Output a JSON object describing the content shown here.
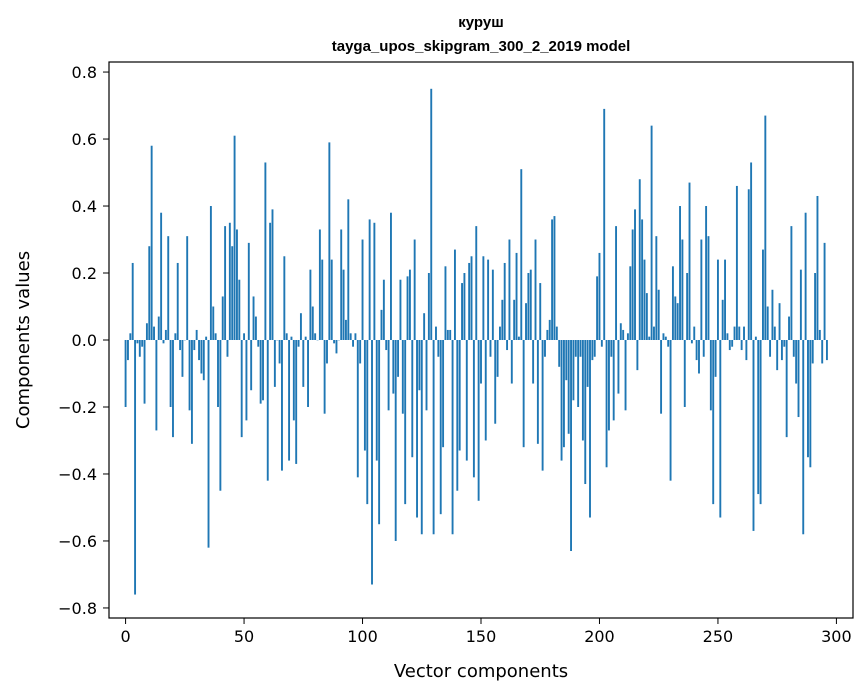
{
  "chart_data": {
    "type": "bar",
    "title": "куруш",
    "subtitle": "tayga_upos_skipgram_300_2_2019 model",
    "xlabel": "Vector components",
    "ylabel": "Components values",
    "xlim": [
      -7,
      307
    ],
    "ylim": [
      -0.83,
      0.83
    ],
    "xticks": [
      0,
      50,
      100,
      150,
      200,
      250,
      300
    ],
    "yticks": [
      -0.8,
      -0.6,
      -0.4,
      -0.2,
      0.0,
      0.2,
      0.4,
      0.6,
      0.8
    ],
    "ytick_labels": [
      "−0.8",
      "−0.6",
      "−0.4",
      "−0.2",
      "0.0",
      "0.2",
      "0.4",
      "0.6",
      "0.8"
    ],
    "color": "#1f77b4",
    "values": [
      -0.2,
      -0.06,
      0.02,
      0.23,
      -0.76,
      -0.01,
      -0.05,
      -0.02,
      -0.19,
      0.05,
      0.28,
      0.58,
      0.04,
      -0.27,
      0.07,
      0.38,
      -0.01,
      0.03,
      0.31,
      -0.2,
      -0.29,
      0.02,
      0.23,
      -0.03,
      -0.11,
      0.0,
      0.31,
      -0.21,
      -0.31,
      -0.03,
      0.03,
      -0.06,
      -0.1,
      -0.12,
      0.01,
      -0.62,
      0.4,
      0.1,
      0.02,
      -0.2,
      -0.45,
      0.13,
      0.34,
      -0.05,
      0.35,
      0.28,
      0.61,
      0.33,
      0.18,
      -0.29,
      0.02,
      -0.24,
      0.29,
      -0.15,
      0.13,
      0.07,
      -0.02,
      -0.19,
      -0.18,
      0.53,
      -0.42,
      0.35,
      0.39,
      -0.14,
      0.0,
      -0.07,
      -0.39,
      0.25,
      0.02,
      -0.36,
      0.01,
      -0.24,
      -0.37,
      -0.02,
      0.08,
      -0.14,
      0.01,
      -0.2,
      0.21,
      0.1,
      0.02,
      0.0,
      0.33,
      0.24,
      -0.22,
      -0.07,
      0.59,
      0.24,
      -0.01,
      -0.04,
      0.0,
      0.33,
      0.21,
      0.06,
      0.42,
      0.02,
      -0.02,
      0.02,
      -0.41,
      -0.07,
      0.3,
      -0.33,
      -0.49,
      0.36,
      -0.73,
      0.35,
      -0.36,
      -0.55,
      0.09,
      0.18,
      -0.03,
      -0.21,
      0.38,
      -0.16,
      -0.6,
      -0.11,
      0.18,
      -0.22,
      -0.49,
      0.19,
      0.21,
      -0.35,
      0.3,
      -0.53,
      -0.15,
      -0.58,
      0.08,
      -0.21,
      0.2,
      0.75,
      -0.58,
      0.04,
      -0.05,
      -0.52,
      -0.32,
      0.22,
      0.03,
      0.03,
      -0.58,
      0.27,
      -0.45,
      -0.33,
      0.17,
      0.2,
      -0.36,
      0.23,
      0.25,
      -0.41,
      0.34,
      -0.48,
      -0.13,
      0.25,
      -0.3,
      0.24,
      -0.05,
      0.21,
      -0.25,
      -0.11,
      0.04,
      0.12,
      0.23,
      -0.03,
      0.3,
      -0.13,
      0.12,
      0.26,
      0.01,
      0.51,
      -0.32,
      0.11,
      0.2,
      0.21,
      -0.13,
      0.3,
      -0.31,
      0.17,
      -0.39,
      -0.05,
      0.03,
      0.06,
      0.36,
      0.37,
      0.04,
      -0.08,
      -0.36,
      -0.32,
      -0.12,
      -0.28,
      -0.63,
      -0.18,
      -0.05,
      -0.2,
      -0.05,
      -0.3,
      -0.43,
      -0.14,
      -0.53,
      -0.06,
      -0.05,
      0.19,
      0.26,
      -0.02,
      0.69,
      -0.38,
      -0.27,
      -0.05,
      -0.24,
      0.34,
      -0.16,
      0.05,
      0.03,
      -0.21,
      0.02,
      0.22,
      0.33,
      0.39,
      -0.09,
      0.48,
      0.36,
      0.24,
      0.14,
      0.01,
      0.64,
      0.04,
      0.31,
      0.15,
      -0.22,
      0.02,
      0.01,
      -0.02,
      -0.42,
      0.22,
      0.13,
      0.11,
      0.4,
      0.3,
      -0.2,
      0.2,
      0.47,
      -0.01,
      0.04,
      -0.06,
      -0.1,
      0.3,
      -0.05,
      0.4,
      0.31,
      -0.21,
      -0.49,
      -0.11,
      0.24,
      -0.53,
      0.12,
      0.24,
      0.02,
      -0.03,
      -0.02,
      0.04,
      0.46,
      0.04,
      -0.03,
      0.04,
      -0.06,
      0.45,
      0.53,
      -0.57,
      0.01,
      -0.46,
      -0.49,
      0.27,
      0.67,
      0.1,
      -0.05,
      0.15,
      0.04,
      -0.09,
      0.11,
      -0.06,
      -0.02,
      -0.29,
      0.07,
      0.34,
      -0.05,
      -0.13,
      -0.23,
      0.21,
      -0.58,
      0.38,
      -0.35,
      -0.38,
      -0.07,
      0.2,
      0.43,
      0.03,
      -0.07,
      0.29,
      -0.06
    ]
  }
}
